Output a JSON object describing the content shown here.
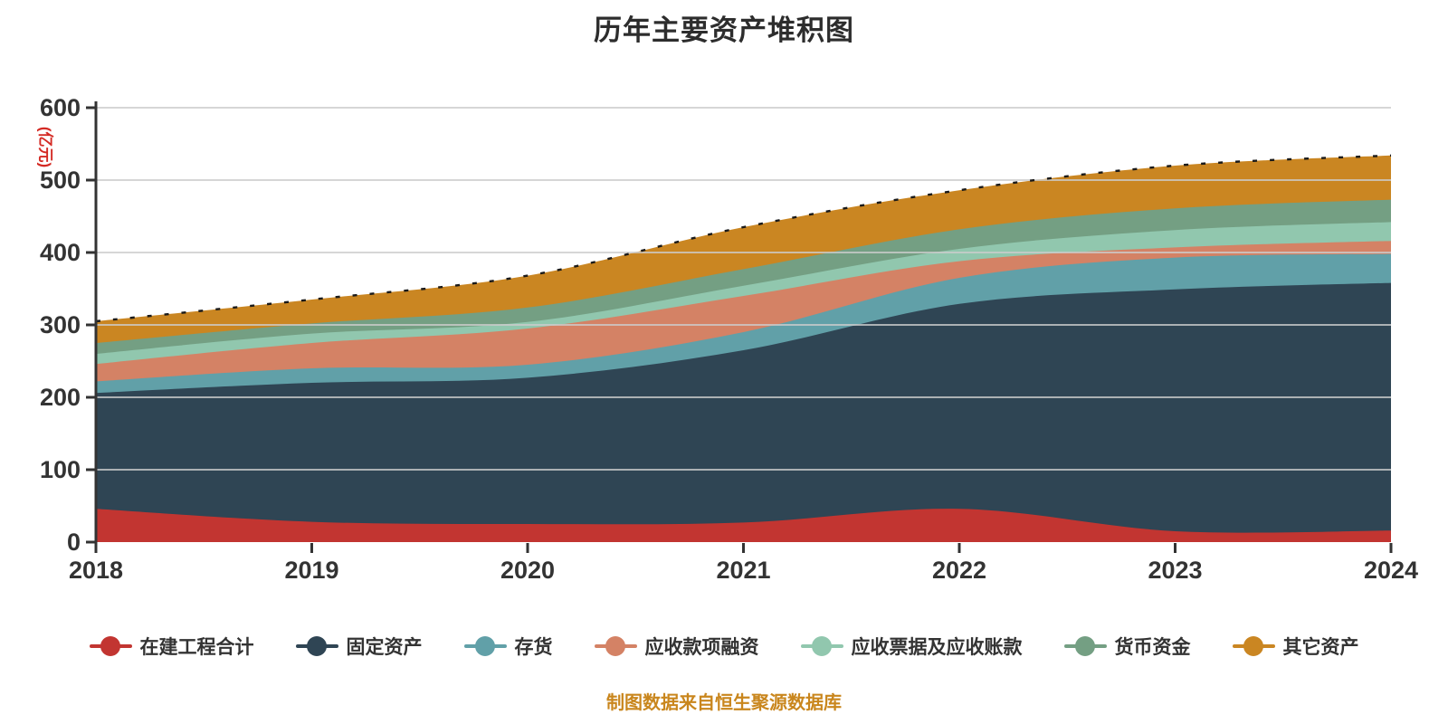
{
  "title": "历年主要资产堆积图",
  "caption": "制图数据来自恒生聚源数据库",
  "colors": {
    "title_text": "#2d2d2d",
    "axis_line": "#333333",
    "axis_label": "#333333",
    "grid_line": "#cccccc",
    "y_axis_name": "#d42a24",
    "caption_text": "#c9861d",
    "top_dash_line": "#1a1a1a"
  },
  "chart_data": {
    "type": "area",
    "stacked": true,
    "smooth": true,
    "title": "历年主要资产堆积图",
    "ylabel": "(亿元)",
    "xlabel": "",
    "categories": [
      "2018",
      "2019",
      "2020",
      "2021",
      "2022",
      "2023",
      "2024"
    ],
    "series": [
      {
        "name": "在建工程合计",
        "color": "#c23531",
        "values": [
          46,
          28,
          25,
          27,
          46,
          15,
          16
        ]
      },
      {
        "name": "固定资产",
        "color": "#2f4554",
        "values": [
          160,
          192,
          202,
          238,
          283,
          334,
          342
        ]
      },
      {
        "name": "存货",
        "color": "#61a0a8",
        "values": [
          16,
          20,
          18,
          25,
          36,
          44,
          40
        ]
      },
      {
        "name": "应收款项融资",
        "color": "#d48265",
        "values": [
          24,
          35,
          50,
          50,
          23,
          14,
          18
        ]
      },
      {
        "name": "应收票据及应收账款",
        "color": "#91c7ae",
        "values": [
          14,
          13,
          9,
          14,
          17,
          24,
          26
        ]
      },
      {
        "name": "货币资金",
        "color": "#749f83",
        "values": [
          15,
          14,
          20,
          23,
          27,
          30,
          31
        ]
      },
      {
        "name": "其它资产",
        "color": "#ca8622",
        "values": [
          30,
          33,
          44,
          58,
          54,
          59,
          61
        ]
      }
    ],
    "stack_totals": [
      305,
      335,
      368,
      435,
      486,
      520,
      534
    ],
    "ylim": [
      0,
      600
    ],
    "y_ticks": [
      0,
      100,
      200,
      300,
      400,
      500,
      600
    ],
    "grid": true,
    "legend_position": "bottom"
  },
  "legend": {
    "items": [
      {
        "label": "在建工程合计",
        "color": "#c23531"
      },
      {
        "label": "固定资产",
        "color": "#2f4554"
      },
      {
        "label": "存货",
        "color": "#61a0a8"
      },
      {
        "label": "应收款项融资",
        "color": "#d48265"
      },
      {
        "label": "应收票据及应收账款",
        "color": "#91c7ae"
      },
      {
        "label": "货币资金",
        "color": "#749f83"
      },
      {
        "label": "其它资产",
        "color": "#ca8622"
      }
    ]
  }
}
